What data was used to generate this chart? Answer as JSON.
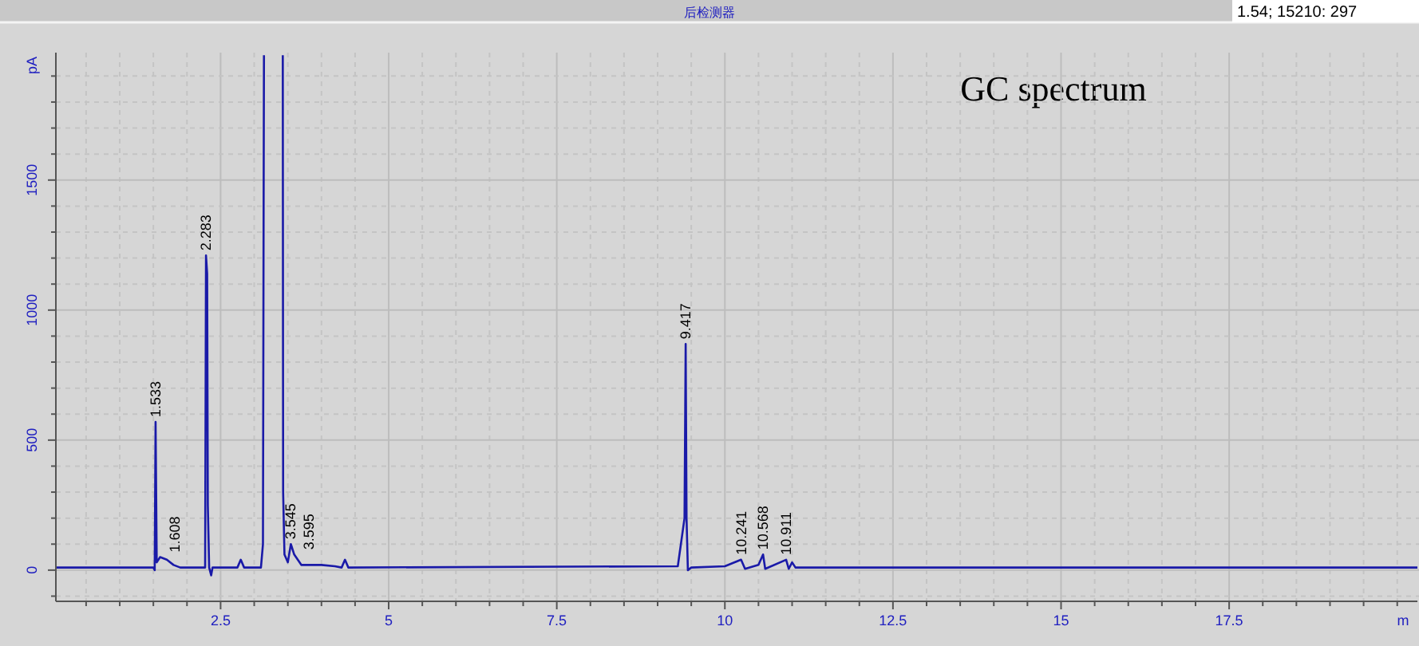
{
  "chart_data": {
    "type": "line",
    "title": "后检测器",
    "xlabel": "m",
    "ylabel": "pA",
    "annotations": [
      "1.54; 15210: 297",
      "GC spectrum",
      {
        "text": "1.533",
        "x": 1.533,
        "y": 570
      },
      {
        "text": "1.608",
        "x": 1.608,
        "y": 50
      },
      {
        "text": "2.283",
        "x": 2.283,
        "y": 1210
      },
      {
        "text": "3.545",
        "x": 3.545,
        "y": 100
      },
      {
        "text": "3.595",
        "x": 3.595,
        "y": 60
      },
      {
        "text": "9.417",
        "x": 9.417,
        "y": 870
      },
      {
        "text": "10.241",
        "x": 10.241,
        "y": 40
      },
      {
        "text": "10.568",
        "x": 10.568,
        "y": 60
      },
      {
        "text": "10.911",
        "x": 10.911,
        "y": 40
      }
    ],
    "series": [
      {
        "color": "#1a1aa8",
        "x": [
          0.05,
          1.5,
          1.52,
          1.533,
          1.55,
          1.6,
          1.7,
          1.8,
          1.9,
          2.27,
          2.283,
          2.3,
          2.31,
          2.33,
          2.36,
          2.38,
          2.75,
          2.8,
          2.85,
          3.1,
          3.13,
          3.14,
          3.145
        ],
        "values": [
          10,
          10,
          0,
          570,
          30,
          50,
          40,
          20,
          10,
          10,
          1210,
          1140,
          250,
          10,
          -20,
          10,
          10,
          40,
          10,
          10,
          100,
          1400,
          1980
        ]
      },
      {
        "color": "#1a1aa8",
        "x": [
          3.425,
          3.43,
          3.45,
          3.5,
          3.545,
          3.595,
          3.7,
          4.0,
          4.2,
          4.3,
          4.35,
          4.4,
          9.3,
          9.4,
          9.417,
          9.43,
          9.45,
          9.5,
          10.0,
          10.241,
          10.3,
          10.5,
          10.568,
          10.6,
          10.911,
          10.95,
          11.0,
          11.05,
          20.3
        ],
        "values": [
          1980,
          300,
          60,
          30,
          100,
          60,
          20,
          20,
          15,
          10,
          40,
          10,
          15,
          200,
          870,
          200,
          0,
          10,
          15,
          40,
          5,
          20,
          60,
          5,
          40,
          5,
          30,
          10,
          10
        ]
      }
    ],
    "xlim": [
      0.05,
      20.3
    ],
    "ylim": [
      -120,
      1990
    ],
    "xticks": [
      {
        "value": 0.5,
        "label": null
      },
      {
        "value": 1,
        "label": null
      },
      {
        "value": 1.5,
        "label": null
      },
      {
        "value": 2,
        "label": null
      },
      2.5,
      {
        "value": 3,
        "label": null
      },
      {
        "value": 3.5,
        "label": null
      },
      {
        "value": 4,
        "label": null
      },
      {
        "value": 4.5,
        "label": null
      },
      5,
      {
        "value": 5.5,
        "label": null
      },
      {
        "value": 6,
        "label": null
      },
      {
        "value": 6.5,
        "label": null
      },
      {
        "value": 7,
        "label": null
      },
      7.5,
      {
        "value": 8,
        "label": null
      },
      {
        "value": 8.5,
        "label": null
      },
      {
        "value": 9,
        "label": null
      },
      {
        "value": 9.5,
        "label": null
      },
      10,
      {
        "value": 10.5,
        "label": null
      },
      {
        "value": 11,
        "label": null
      },
      {
        "value": 11.5,
        "label": null
      },
      {
        "value": 12,
        "label": null
      },
      12.5,
      {
        "value": 13,
        "label": null
      },
      {
        "value": 13.5,
        "label": null
      },
      {
        "value": 14,
        "label": null
      },
      {
        "value": 14.5,
        "label": null
      },
      15,
      {
        "value": 15.5,
        "label": null
      },
      {
        "value": 16,
        "label": null
      },
      {
        "value": 16.5,
        "label": null
      },
      {
        "value": 17,
        "label": null
      },
      17.5,
      {
        "value": 18,
        "label": null
      },
      {
        "value": 18.5,
        "label": null
      },
      {
        "value": 19,
        "label": null
      },
      {
        "value": 19.5,
        "label": null
      },
      {
        "value": 20,
        "label": null
      }
    ],
    "yticks": [
      {
        "value": -100,
        "label": null
      },
      0,
      {
        "value": 100,
        "label": null
      },
      {
        "value": 200,
        "label": null
      },
      {
        "value": 300,
        "label": null
      },
      {
        "value": 400,
        "label": null
      },
      500,
      {
        "value": 600,
        "label": null
      },
      {
        "value": 700,
        "label": null
      },
      {
        "value": 800,
        "label": null
      },
      {
        "value": 900,
        "label": null
      },
      1000,
      {
        "value": 1100,
        "label": null
      },
      {
        "value": 1200,
        "label": null
      },
      {
        "value": 1300,
        "label": null
      },
      {
        "value": 1400,
        "label": null
      },
      1500,
      {
        "value": 1600,
        "label": null
      },
      {
        "value": 1700,
        "label": null
      },
      {
        "value": 1800,
        "label": null
      },
      {
        "value": 1900,
        "label": null
      }
    ],
    "grid": true,
    "line_style": "solid"
  }
}
